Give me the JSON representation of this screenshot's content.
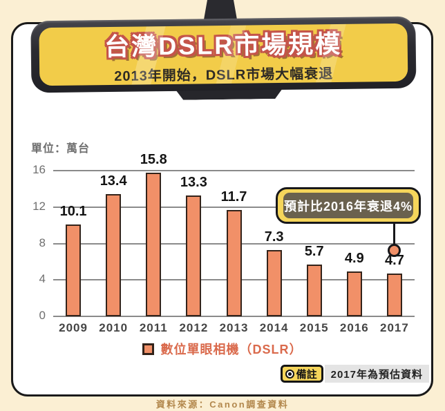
{
  "page": {
    "background": "#FBEFD3",
    "source": "資料來源：Canon調查資料"
  },
  "mirror": {
    "title": "台灣DSLR市場規模",
    "subtitle": "2013年開始，DSLR市場大幅衰退",
    "frame_color": "#2B2B31",
    "glass_color": "#F2CC49"
  },
  "chart": {
    "unit_label": "單位：萬台",
    "legend": {
      "label": "數位單眼相機（DSLR）",
      "swatch_color": "#F19068"
    },
    "callout": {
      "text": "預計比2016年衰退4%",
      "bg": "#F5D55B",
      "pill_color": "#6A614E"
    },
    "note": {
      "badge": "備註",
      "text": "2017年為預估資料"
    }
  },
  "chart_data": {
    "type": "bar",
    "title": "台灣DSLR市場規模",
    "subtitle": "2013年開始，DSLR市場大幅衰退",
    "categories": [
      "2009",
      "2010",
      "2011",
      "2012",
      "2013",
      "2014",
      "2015",
      "2016",
      "2017"
    ],
    "values": [
      10.1,
      13.4,
      15.8,
      13.3,
      11.7,
      7.3,
      5.7,
      4.9,
      4.7
    ],
    "series_name": "數位單眼相機（DSLR）",
    "unit": "萬台",
    "ylabel": "單位：萬台",
    "ylim": [
      0,
      16
    ],
    "yticks": [
      0,
      4,
      8,
      12,
      16
    ],
    "grid": true,
    "legend_position": "bottom",
    "bar_color": "#F19068",
    "bar_border_color": "#33231A",
    "annotation": {
      "text": "預計比2016年衰退4%",
      "target_category": "2017",
      "target_value": 4.7
    },
    "footnote": "2017年為預估資料",
    "source": "資料來源：Canon調查資料"
  }
}
